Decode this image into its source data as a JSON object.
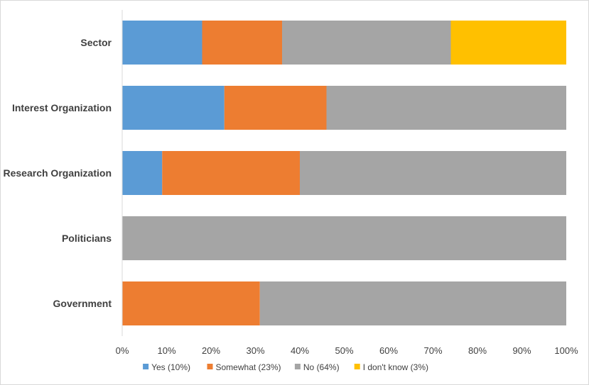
{
  "chart_data": {
    "type": "bar",
    "orientation": "horizontal",
    "stacked": true,
    "percent": true,
    "categories": [
      "Sector",
      "Interest Organization",
      "Research Organization",
      "Politicians",
      "Government"
    ],
    "series": [
      {
        "name": "Yes (10%)",
        "color": "#5b9bd5",
        "values": [
          18,
          23,
          9,
          0,
          0
        ]
      },
      {
        "name": "Somewhat (23%)",
        "color": "#ed7d31",
        "values": [
          18,
          23,
          31,
          0,
          31
        ]
      },
      {
        "name": "No (64%)",
        "color": "#a5a5a5",
        "values": [
          38,
          54,
          60,
          100,
          69
        ]
      },
      {
        "name": "I don't know (3%)",
        "color": "#ffc000",
        "values": [
          26,
          0,
          0,
          0,
          0
        ]
      }
    ],
    "xticks": [
      "0%",
      "10%",
      "20%",
      "30%",
      "40%",
      "50%",
      "60%",
      "70%",
      "80%",
      "90%",
      "100%"
    ],
    "xlim": [
      0,
      100
    ],
    "grid": false,
    "legend": "bottom",
    "title": "",
    "xlabel": "",
    "ylabel": ""
  }
}
